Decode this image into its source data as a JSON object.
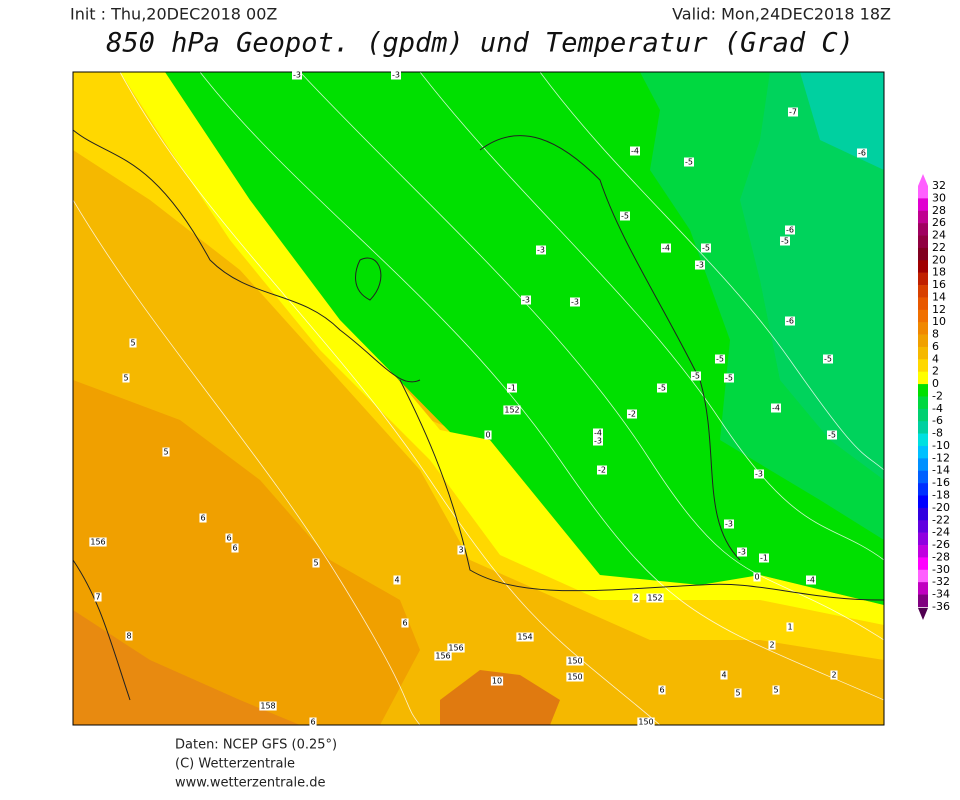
{
  "header": {
    "init": "Init : Thu,20DEC2018 00Z",
    "valid": "Valid: Mon,24DEC2018 18Z",
    "title": "850 hPa Geopot. (gpdm) und Temperatur (Grad C)"
  },
  "legend": {
    "labels": [
      "32",
      "30",
      "28",
      "26",
      "24",
      "22",
      "20",
      "18",
      "16",
      "14",
      "12",
      "10",
      "8",
      "6",
      "4",
      "2",
      "0",
      "-2",
      "-4",
      "-6",
      "-8",
      "-10",
      "-12",
      "-14",
      "-16",
      "-18",
      "-20",
      "-22",
      "-24",
      "-26",
      "-28",
      "-30",
      "-32",
      "-34",
      "-36"
    ],
    "colors": [
      "#ff60ff",
      "#e000d0",
      "#c00090",
      "#a00060",
      "#900040",
      "#800020",
      "#a00000",
      "#c02000",
      "#d84000",
      "#e85800",
      "#f07000",
      "#f08800",
      "#f0a000",
      "#f5b800",
      "#ffd800",
      "#ffff00",
      "#00e000",
      "#00d840",
      "#00d070",
      "#00d0a0",
      "#00e0e0",
      "#00c0ff",
      "#0090ff",
      "#0060ff",
      "#0030ff",
      "#0000ff",
      "#3000e0",
      "#6000e0",
      "#9000e0",
      "#c000e0",
      "#ff00ff",
      "#ff60ff",
      "#c000c0",
      "#800080"
    ]
  },
  "map_labels": [
    "-3",
    "-3",
    "-7",
    "-6",
    "-4",
    "-5",
    "-5",
    "-6",
    "-5",
    "-3",
    "-4",
    "-5",
    "-3",
    "-3",
    "-3",
    "-6",
    "-5",
    "-5",
    "-5",
    "-5",
    "-5",
    "-1",
    "-4",
    "152",
    "-2",
    "-4",
    "-3",
    "-5",
    "0",
    "-2",
    "-3",
    "-3",
    "-3",
    "-1",
    "0",
    "-4",
    "2",
    "152",
    "5",
    "5",
    "5",
    "6",
    "6",
    "6",
    "156",
    "5",
    "4",
    "3",
    "7",
    "8",
    "6",
    "156",
    "156",
    "154",
    "150",
    "150",
    "10",
    "158",
    "6",
    "150",
    "1",
    "2",
    "2",
    "5",
    "5",
    "4",
    "6"
  ],
  "footer": {
    "source": "Daten: NCEP GFS (0.25°)",
    "copyright": "(C) Wetterzentrale",
    "url": "www.wetterzentrale.de"
  }
}
